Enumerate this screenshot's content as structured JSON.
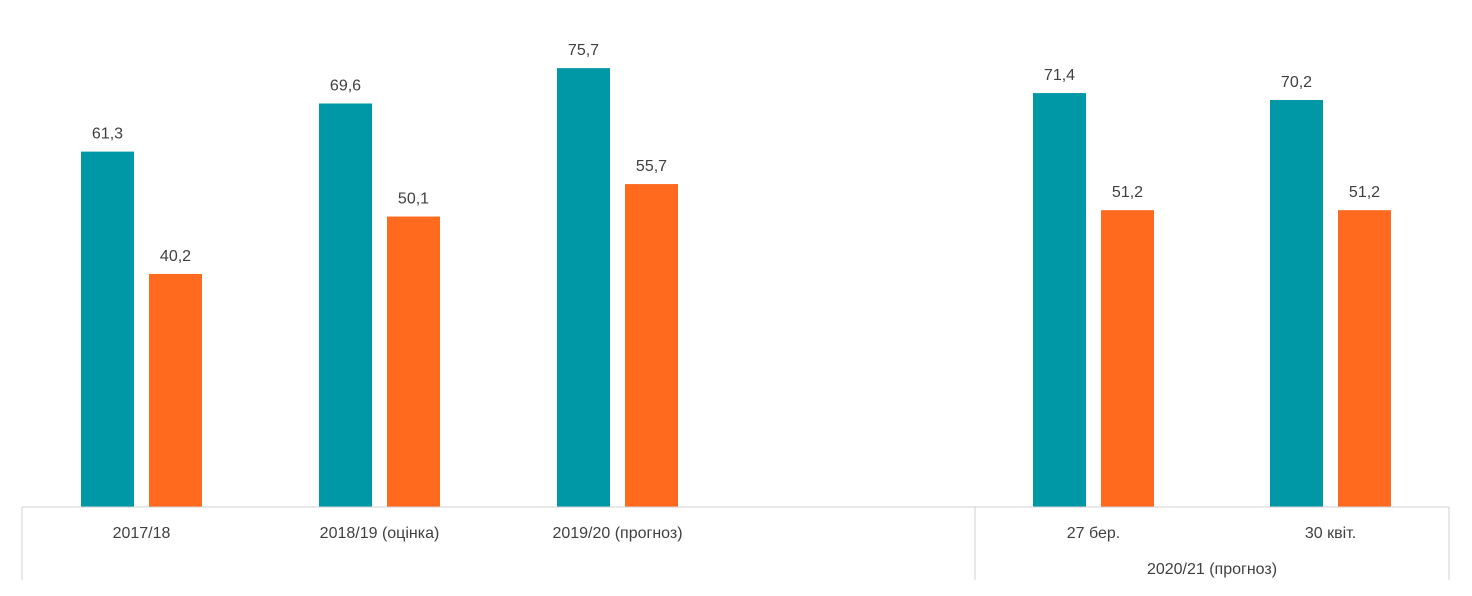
{
  "chart_data": {
    "type": "bar",
    "categories": [
      "2017/18",
      "2018/19 (оцінка)",
      "2019/20 (прогноз)",
      "27 бер.",
      "30 квіт."
    ],
    "category_groups": [
      {
        "label": "",
        "members": [
          "2017/18",
          "2018/19 (оцінка)",
          "2019/20 (прогноз)"
        ]
      },
      {
        "label": "2020/21 (прогноз)",
        "members": [
          "27 бер.",
          "30 квіт."
        ]
      }
    ],
    "series": [
      {
        "color": "#0097A7",
        "values": [
          61.3,
          69.6,
          75.7,
          71.4,
          70.2
        ]
      },
      {
        "color": "#FF6A1F",
        "values": [
          40.2,
          50.1,
          55.7,
          51.2,
          51.2
        ]
      }
    ],
    "data_labels": [
      [
        "61,3",
        "69,6",
        "75,7",
        "71,4",
        "70,2"
      ],
      [
        "40,2",
        "50,1",
        "55,7",
        "51,2",
        "51,2"
      ]
    ],
    "ylim": [
      0,
      84
    ],
    "grid": false,
    "legend": "none"
  }
}
